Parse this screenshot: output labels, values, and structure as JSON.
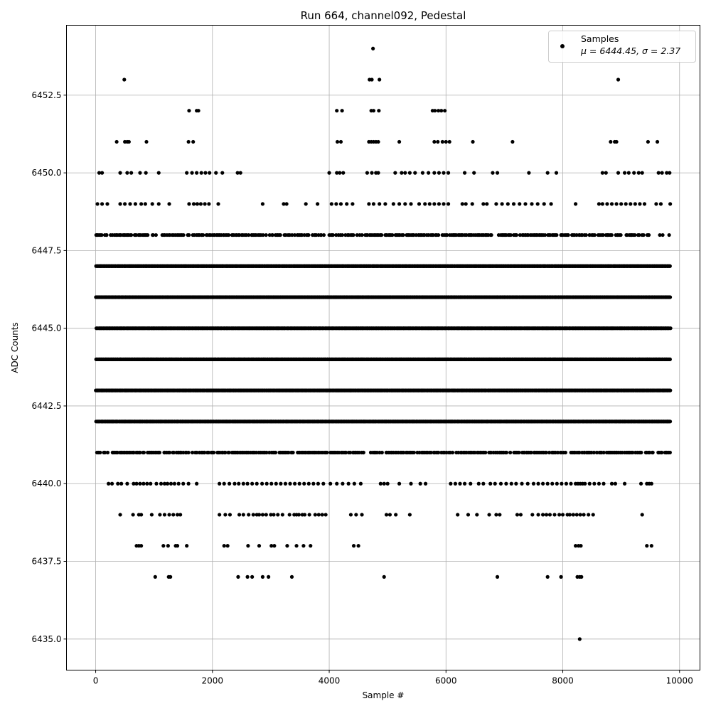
{
  "chart_data": {
    "type": "scatter",
    "title": "Run 664, channel092, Pedestal",
    "xlabel": "Sample #",
    "ylabel": "ADC Counts",
    "xlim": [
      -500,
      10350
    ],
    "ylim": [
      6434.0,
      6454.75
    ],
    "x_ticks": [
      0,
      2000,
      4000,
      6000,
      8000,
      10000
    ],
    "x_tick_labels": [
      "0",
      "2000",
      "4000",
      "6000",
      "8000",
      "10000"
    ],
    "y_ticks": [
      6435.0,
      6437.5,
      6440.0,
      6442.5,
      6445.0,
      6447.5,
      6450.0,
      6452.5
    ],
    "y_tick_labels": [
      "6435.0",
      "6437.5",
      "6440.0",
      "6442.5",
      "6445.0",
      "6447.5",
      "6450.0",
      "6452.5"
    ],
    "grid": true,
    "legend": {
      "placement": "top-right",
      "entries": [
        {
          "name": "Samples",
          "stat_line": "μ = 6444.45, σ = 2.37",
          "marker_color": "#000000"
        }
      ]
    },
    "series": [
      {
        "name": "Samples",
        "color": "#000000",
        "n_samples": 9850,
        "x_range": [
          0,
          9850
        ],
        "dense_levels": [
          6441,
          6442,
          6443,
          6444,
          6445,
          6446,
          6447,
          6448
        ],
        "sparse_clusters": [
          {
            "y": 6435,
            "x": [
              8290
            ]
          },
          {
            "y": 6437,
            "x": [
              1020,
              1250,
              1280,
              2440,
              2600,
              2680,
              2860,
              2960,
              3360,
              4940,
              6880,
              7740,
              7970,
              8250,
              8290,
              8320
            ]
          },
          {
            "y": 6438,
            "x": [
              700,
              740,
              780,
              1160,
              1240,
              1370,
              1400,
              1560,
              2200,
              2260,
              2610,
              2800,
              3010,
              3060,
              3280,
              3440,
              3560,
              3680,
              4420,
              4500,
              8220,
              8270,
              8310,
              9440,
              9520
            ]
          },
          {
            "y": 6439,
            "x": [
              420,
              640,
              740,
              780,
              960,
              1100,
              1180,
              1260,
              1330,
              1400,
              1450,
              2120,
              2220,
              2300,
              2460,
              2530,
              2620,
              2700,
              2760,
              2800,
              2860,
              2920,
              3000,
              3050,
              3120,
              3200,
              3320,
              3400,
              3440,
              3480,
              3540,
              3580,
              3660,
              3760,
              3820,
              3880,
              3940,
              4370,
              4460,
              4560,
              4980,
              5040,
              5140,
              5380,
              6200,
              6380,
              6530,
              6740,
              6860,
              6920,
              7220,
              7280,
              7480,
              7580,
              7660,
              7720,
              7780,
              7860,
              7940,
              8000,
              8080,
              8120,
              8180,
              8240,
              8300,
              8360,
              8440,
              8520,
              9360
            ]
          },
          {
            "y": 6440,
            "x": [
              220,
              280,
              380,
              440,
              540,
              650,
              700,
              760,
              820,
              880,
              940,
              1040,
              1120,
              1180,
              1230,
              1290,
              1350,
              1420,
              1500,
              1590,
              1730,
              2120,
              2200,
              2290,
              2380,
              2450,
              2530,
              2600,
              2680,
              2760,
              2850,
              2930,
              3010,
              3090,
              3170,
              3250,
              3330,
              3410,
              3490,
              3570,
              3650,
              3730,
              3810,
              3900,
              4020,
              4130,
              4230,
              4330,
              4430,
              4540,
              4880,
              4940,
              5000,
              5200,
              5400,
              5560,
              5650,
              6080,
              6160,
              6240,
              6320,
              6420,
              6560,
              6640,
              6760,
              6840,
              6940,
              7030,
              7120,
              7200,
              7300,
              7400,
              7500,
              7580,
              7660,
              7740,
              7820,
              7900,
              7980,
              8060,
              8140,
              8220,
              8260,
              8300,
              8340,
              8380,
              8460,
              8540,
              8620,
              8700,
              8840,
              8900,
              9060,
              9340,
              9440,
              9480,
              9520
            ]
          },
          {
            "y": 6449,
            "x": [
              30,
              110,
              200,
              420,
              500,
              590,
              680,
              780,
              850,
              970,
              1080,
              1260,
              1600,
              1680,
              1740,
              1800,
              1870,
              1940,
              2100,
              2860,
              3220,
              3270,
              3600,
              3800,
              4040,
              4120,
              4200,
              4300,
              4400,
              4680,
              4760,
              4860,
              4960,
              5100,
              5200,
              5300,
              5400,
              5540,
              5640,
              5720,
              5800,
              5880,
              5960,
              6040,
              6280,
              6340,
              6450,
              6640,
              6700,
              6860,
              6960,
              7060,
              7160,
              7260,
              7360,
              7470,
              7570,
              7680,
              7800,
              8220,
              8620,
              8680,
              8760,
              8840,
              8920,
              9000,
              9080,
              9160,
              9240,
              9320,
              9400,
              9600,
              9680,
              9840
            ]
          },
          {
            "y": 6450,
            "x": [
              60,
              110,
              420,
              540,
              610,
              760,
              860,
              1080,
              1560,
              1650,
              1730,
              1810,
              1880,
              1950,
              2060,
              2170,
              2430,
              2480,
              4000,
              4130,
              4180,
              4240,
              4650,
              4730,
              4800,
              4840,
              5130,
              5240,
              5300,
              5380,
              5470,
              5600,
              5700,
              5800,
              5880,
              5960,
              6040,
              6320,
              6480,
              6800,
              6880,
              7420,
              7740,
              7890,
              8680,
              8740,
              8950,
              9060,
              9130,
              9220,
              9300,
              9360,
              9640,
              9700,
              9780,
              9830
            ]
          },
          {
            "y": 6451,
            "x": [
              360,
              500,
              540,
              570,
              870,
              1590,
              1670,
              4140,
              4200,
              4680,
              4720,
              4760,
              4800,
              4840,
              5200,
              5800,
              5860,
              5940,
              6000,
              6060,
              6460,
              7140,
              8820,
              8890,
              8920,
              9460,
              9620
            ]
          },
          {
            "y": 6452,
            "x": [
              1600,
              1730,
              1760,
              4130,
              4220,
              4720,
              4760,
              4850,
              5770,
              5810,
              5870,
              5920,
              5980
            ]
          },
          {
            "y": 6453,
            "x": [
              490,
              4690,
              4730,
              4860,
              8950
            ]
          },
          {
            "y": 6454,
            "x": [
              4750
            ]
          }
        ]
      }
    ]
  }
}
